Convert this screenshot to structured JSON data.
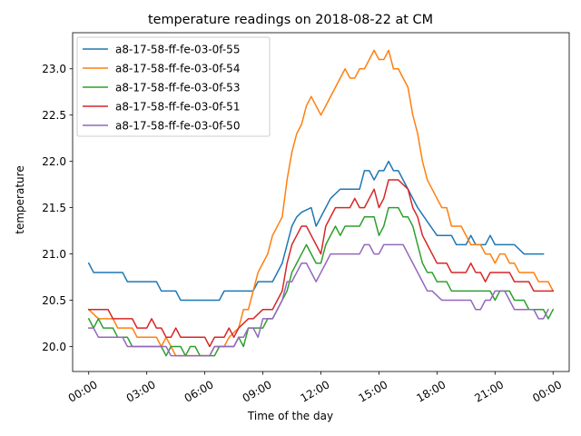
{
  "chart_data": {
    "type": "line",
    "title": "temperature readings on 2018-08-22 at CM",
    "xlabel": "Time of the day",
    "ylabel": "temperature",
    "xlim": [
      "2018-08-21T23:10",
      "2018-08-23T00:50"
    ],
    "ylim": [
      19.73,
      23.39
    ],
    "x_tick_labels": [
      "00:00",
      "03:00",
      "06:00",
      "09:00",
      "12:00",
      "15:00",
      "18:00",
      "21:00",
      "00:00"
    ],
    "x_tick_hours": [
      0,
      3,
      6,
      9,
      12,
      15,
      18,
      21,
      24
    ],
    "y_tick_labels": [
      "20.0",
      "20.5",
      "21.0",
      "21.5",
      "22.0",
      "22.5",
      "23.0"
    ],
    "y_ticks": [
      20.0,
      20.5,
      21.0,
      21.5,
      22.0,
      22.5,
      23.0
    ],
    "grid": false,
    "legend_position": "top-left",
    "sample_interval_minutes": 15,
    "x_start_time": "00:00",
    "series": [
      {
        "name": "a8-17-58-ff-fe-03-0f-55",
        "color": "#1f77b4",
        "points": [
          [
            0,
            20.9
          ],
          [
            0.25,
            20.8
          ],
          [
            1.75,
            20.8
          ],
          [
            2.0,
            20.7
          ],
          [
            3.5,
            20.7
          ],
          [
            3.75,
            20.6
          ],
          [
            4.5,
            20.6
          ],
          [
            4.75,
            20.5
          ],
          [
            6.75,
            20.5
          ],
          [
            7.0,
            20.6
          ],
          [
            8.5,
            20.6
          ],
          [
            8.75,
            20.7
          ],
          [
            9.5,
            20.7
          ],
          [
            10.0,
            20.9
          ],
          [
            10.25,
            21.1
          ],
          [
            10.5,
            21.3
          ],
          [
            10.75,
            21.4
          ],
          [
            11.0,
            21.45
          ],
          [
            11.5,
            21.5
          ],
          [
            11.75,
            21.3
          ],
          [
            12.25,
            21.5
          ],
          [
            12.5,
            21.6
          ],
          [
            13.0,
            21.7
          ],
          [
            14.0,
            21.7
          ],
          [
            14.25,
            21.9
          ],
          [
            14.5,
            21.9
          ],
          [
            14.75,
            21.8
          ],
          [
            15.0,
            21.9
          ],
          [
            15.25,
            21.9
          ],
          [
            15.5,
            22.0
          ],
          [
            15.75,
            21.9
          ],
          [
            16.0,
            21.9
          ],
          [
            16.5,
            21.7
          ],
          [
            17.0,
            21.5
          ],
          [
            17.5,
            21.35
          ],
          [
            18.0,
            21.2
          ],
          [
            18.75,
            21.2
          ],
          [
            19.0,
            21.1
          ],
          [
            19.5,
            21.1
          ],
          [
            19.75,
            21.2
          ],
          [
            20.0,
            21.1
          ],
          [
            20.5,
            21.1
          ],
          [
            20.75,
            21.2
          ],
          [
            21.0,
            21.1
          ],
          [
            22.0,
            21.1
          ],
          [
            22.5,
            21.0
          ],
          [
            23.5,
            21.0
          ]
        ]
      },
      {
        "name": "a8-17-58-ff-fe-03-0f-54",
        "color": "#ff7f0e",
        "points": [
          [
            0,
            20.4
          ],
          [
            0.5,
            20.3
          ],
          [
            1.25,
            20.3
          ],
          [
            1.5,
            20.2
          ],
          [
            2.25,
            20.2
          ],
          [
            2.5,
            20.1
          ],
          [
            3.5,
            20.1
          ],
          [
            3.75,
            20.0
          ],
          [
            4.0,
            20.1
          ],
          [
            4.25,
            20.0
          ],
          [
            4.5,
            19.9
          ],
          [
            6.25,
            19.9
          ],
          [
            6.5,
            20.0
          ],
          [
            7.0,
            20.0
          ],
          [
            7.25,
            20.1
          ],
          [
            7.75,
            20.2
          ],
          [
            8.0,
            20.4
          ],
          [
            8.25,
            20.4
          ],
          [
            8.5,
            20.6
          ],
          [
            8.75,
            20.8
          ],
          [
            9.0,
            20.9
          ],
          [
            9.25,
            21.0
          ],
          [
            9.5,
            21.2
          ],
          [
            10.0,
            21.4
          ],
          [
            10.25,
            21.8
          ],
          [
            10.5,
            22.1
          ],
          [
            10.75,
            22.3
          ],
          [
            11.0,
            22.4
          ],
          [
            11.25,
            22.6
          ],
          [
            11.5,
            22.7
          ],
          [
            12.0,
            22.5
          ],
          [
            12.25,
            22.6
          ],
          [
            12.75,
            22.8
          ],
          [
            13.25,
            23.0
          ],
          [
            13.5,
            22.9
          ],
          [
            13.75,
            22.9
          ],
          [
            14.0,
            23.0
          ],
          [
            14.25,
            23.0
          ],
          [
            14.75,
            23.2
          ],
          [
            15.0,
            23.1
          ],
          [
            15.25,
            23.1
          ],
          [
            15.5,
            23.2
          ],
          [
            15.75,
            23.0
          ],
          [
            16.0,
            23.0
          ],
          [
            16.5,
            22.8
          ],
          [
            16.75,
            22.5
          ],
          [
            17.0,
            22.3
          ],
          [
            17.25,
            22.0
          ],
          [
            17.5,
            21.8
          ],
          [
            18.0,
            21.6
          ],
          [
            18.25,
            21.5
          ],
          [
            18.5,
            21.5
          ],
          [
            18.75,
            21.3
          ],
          [
            19.25,
            21.3
          ],
          [
            19.75,
            21.1
          ],
          [
            20.25,
            21.1
          ],
          [
            20.5,
            21.0
          ],
          [
            20.75,
            21.0
          ],
          [
            21.0,
            20.9
          ],
          [
            21.25,
            21.0
          ],
          [
            21.5,
            21.0
          ],
          [
            21.75,
            20.9
          ],
          [
            22.0,
            20.9
          ],
          [
            22.25,
            20.8
          ],
          [
            23.0,
            20.8
          ],
          [
            23.25,
            20.7
          ],
          [
            23.75,
            20.7
          ],
          [
            24.0,
            20.6
          ]
        ]
      },
      {
        "name": "a8-17-58-ff-fe-03-0f-53",
        "color": "#2ca02c",
        "points": [
          [
            0,
            20.3
          ],
          [
            0.25,
            20.2
          ],
          [
            0.5,
            20.3
          ],
          [
            0.75,
            20.2
          ],
          [
            1.25,
            20.2
          ],
          [
            1.5,
            20.1
          ],
          [
            2.0,
            20.1
          ],
          [
            2.25,
            20.0
          ],
          [
            3.75,
            20.0
          ],
          [
            4.0,
            19.9
          ],
          [
            4.25,
            20.0
          ],
          [
            4.75,
            20.0
          ],
          [
            5.0,
            19.9
          ],
          [
            5.25,
            20.0
          ],
          [
            5.5,
            20.0
          ],
          [
            5.75,
            19.9
          ],
          [
            6.5,
            19.9
          ],
          [
            6.75,
            20.0
          ],
          [
            7.5,
            20.0
          ],
          [
            7.75,
            20.1
          ],
          [
            8.0,
            20.0
          ],
          [
            8.25,
            20.2
          ],
          [
            9.0,
            20.2
          ],
          [
            9.25,
            20.3
          ],
          [
            9.5,
            20.3
          ],
          [
            10.25,
            20.6
          ],
          [
            10.5,
            20.8
          ],
          [
            10.75,
            20.9
          ],
          [
            11.0,
            21.0
          ],
          [
            11.25,
            21.1
          ],
          [
            11.75,
            20.9
          ],
          [
            12.0,
            20.9
          ],
          [
            12.25,
            21.1
          ],
          [
            12.75,
            21.3
          ],
          [
            13.0,
            21.2
          ],
          [
            13.25,
            21.3
          ],
          [
            14.0,
            21.3
          ],
          [
            14.25,
            21.4
          ],
          [
            14.75,
            21.4
          ],
          [
            15.0,
            21.2
          ],
          [
            15.25,
            21.3
          ],
          [
            15.5,
            21.5
          ],
          [
            16.0,
            21.5
          ],
          [
            16.25,
            21.4
          ],
          [
            16.5,
            21.4
          ],
          [
            16.75,
            21.3
          ],
          [
            17.0,
            21.1
          ],
          [
            17.25,
            20.9
          ],
          [
            17.5,
            20.8
          ],
          [
            17.75,
            20.8
          ],
          [
            18.0,
            20.7
          ],
          [
            18.5,
            20.7
          ],
          [
            18.75,
            20.6
          ],
          [
            20.75,
            20.6
          ],
          [
            21.0,
            20.5
          ],
          [
            21.25,
            20.6
          ],
          [
            21.75,
            20.6
          ],
          [
            22.0,
            20.5
          ],
          [
            22.5,
            20.5
          ],
          [
            22.75,
            20.4
          ],
          [
            23.5,
            20.4
          ],
          [
            23.75,
            20.3
          ],
          [
            24.0,
            20.4
          ]
        ]
      },
      {
        "name": "a8-17-58-ff-fe-03-0f-51",
        "color": "#d62728",
        "points": [
          [
            0,
            20.4
          ],
          [
            1.0,
            20.4
          ],
          [
            1.25,
            20.3
          ],
          [
            2.25,
            20.3
          ],
          [
            2.5,
            20.2
          ],
          [
            3.0,
            20.2
          ],
          [
            3.25,
            20.3
          ],
          [
            3.5,
            20.2
          ],
          [
            3.75,
            20.2
          ],
          [
            4.0,
            20.1
          ],
          [
            4.25,
            20.1
          ],
          [
            4.5,
            20.2
          ],
          [
            4.75,
            20.1
          ],
          [
            6.0,
            20.1
          ],
          [
            6.25,
            20.0
          ],
          [
            6.5,
            20.1
          ],
          [
            7.0,
            20.1
          ],
          [
            7.25,
            20.2
          ],
          [
            7.5,
            20.1
          ],
          [
            7.75,
            20.2
          ],
          [
            8.25,
            20.3
          ],
          [
            8.5,
            20.3
          ],
          [
            9.0,
            20.4
          ],
          [
            9.5,
            20.4
          ],
          [
            9.75,
            20.5
          ],
          [
            10.0,
            20.6
          ],
          [
            10.25,
            20.9
          ],
          [
            10.5,
            21.1
          ],
          [
            10.75,
            21.2
          ],
          [
            11.0,
            21.3
          ],
          [
            11.25,
            21.3
          ],
          [
            11.75,
            21.1
          ],
          [
            12.0,
            21.0
          ],
          [
            12.25,
            21.3
          ],
          [
            12.75,
            21.5
          ],
          [
            13.0,
            21.5
          ],
          [
            13.5,
            21.5
          ],
          [
            13.75,
            21.6
          ],
          [
            14.0,
            21.5
          ],
          [
            14.25,
            21.5
          ],
          [
            14.75,
            21.7
          ],
          [
            15.0,
            21.5
          ],
          [
            15.25,
            21.6
          ],
          [
            15.5,
            21.8
          ],
          [
            16.0,
            21.8
          ],
          [
            16.5,
            21.7
          ],
          [
            16.75,
            21.5
          ],
          [
            17.0,
            21.4
          ],
          [
            17.25,
            21.2
          ],
          [
            17.5,
            21.1
          ],
          [
            17.75,
            21.0
          ],
          [
            18.0,
            20.9
          ],
          [
            18.5,
            20.9
          ],
          [
            18.75,
            20.8
          ],
          [
            19.5,
            20.8
          ],
          [
            19.75,
            20.9
          ],
          [
            20.0,
            20.8
          ],
          [
            20.25,
            20.8
          ],
          [
            20.5,
            20.7
          ],
          [
            20.75,
            20.8
          ],
          [
            21.75,
            20.8
          ],
          [
            22.0,
            20.7
          ],
          [
            22.75,
            20.7
          ],
          [
            23.0,
            20.6
          ],
          [
            24.0,
            20.6
          ]
        ]
      },
      {
        "name": "a8-17-58-ff-fe-03-0f-50",
        "color": "#9467bd",
        "points": [
          [
            0,
            20.2
          ],
          [
            0.25,
            20.2
          ],
          [
            0.5,
            20.1
          ],
          [
            1.75,
            20.1
          ],
          [
            2.0,
            20.0
          ],
          [
            3.25,
            20.0
          ],
          [
            3.5,
            20.0
          ],
          [
            4.0,
            20.0
          ],
          [
            4.25,
            19.9
          ],
          [
            6.25,
            19.9
          ],
          [
            6.5,
            20.0
          ],
          [
            7.5,
            20.0
          ],
          [
            7.75,
            20.1
          ],
          [
            8.0,
            20.1
          ],
          [
            8.25,
            20.2
          ],
          [
            8.5,
            20.2
          ],
          [
            8.75,
            20.1
          ],
          [
            9.0,
            20.3
          ],
          [
            9.5,
            20.3
          ],
          [
            9.75,
            20.4
          ],
          [
            10.0,
            20.5
          ],
          [
            10.25,
            20.7
          ],
          [
            10.5,
            20.7
          ],
          [
            10.75,
            20.8
          ],
          [
            11.0,
            20.9
          ],
          [
            11.25,
            20.9
          ],
          [
            11.75,
            20.7
          ],
          [
            12.0,
            20.8
          ],
          [
            12.25,
            20.9
          ],
          [
            12.5,
            21.0
          ],
          [
            14.0,
            21.0
          ],
          [
            14.25,
            21.1
          ],
          [
            14.5,
            21.1
          ],
          [
            14.75,
            21.0
          ],
          [
            15.0,
            21.0
          ],
          [
            15.25,
            21.1
          ],
          [
            16.25,
            21.1
          ],
          [
            16.5,
            21.0
          ],
          [
            16.75,
            20.9
          ],
          [
            17.25,
            20.7
          ],
          [
            17.5,
            20.6
          ],
          [
            17.75,
            20.6
          ],
          [
            18.0,
            20.55
          ],
          [
            18.25,
            20.5
          ],
          [
            19.75,
            20.5
          ],
          [
            20.0,
            20.4
          ],
          [
            20.25,
            20.4
          ],
          [
            20.5,
            20.5
          ],
          [
            20.75,
            20.5
          ],
          [
            21.0,
            20.6
          ],
          [
            21.25,
            20.6
          ],
          [
            21.5,
            20.6
          ],
          [
            21.75,
            20.5
          ],
          [
            22.0,
            20.4
          ],
          [
            23.0,
            20.4
          ],
          [
            23.25,
            20.3
          ],
          [
            23.5,
            20.3
          ],
          [
            23.75,
            20.4
          ]
        ]
      }
    ]
  }
}
